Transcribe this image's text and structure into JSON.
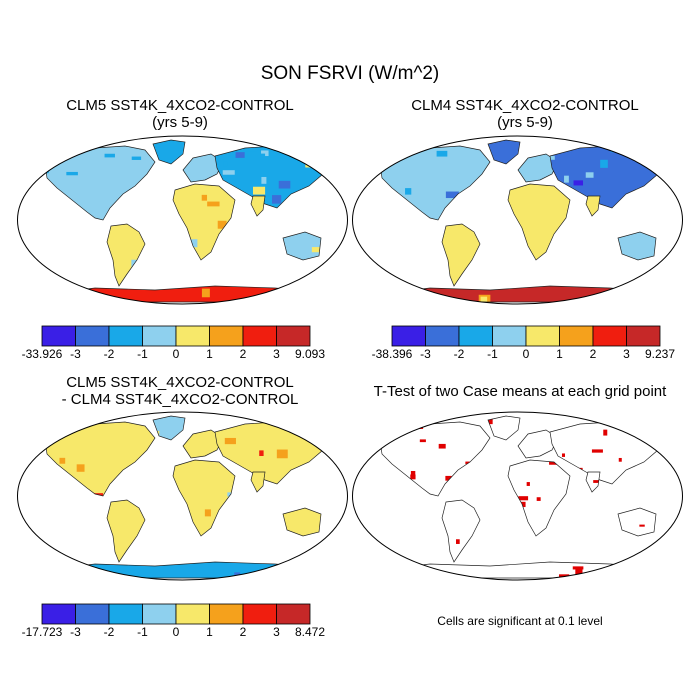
{
  "figure_title": "SON FSRVI (W/m^2)",
  "panels": [
    {
      "title_line1": "CLM5 SST4K_4XCO2-CONTROL",
      "title_line2": "(yrs 5-9)"
    },
    {
      "title_line1": "CLM4 SST4K_4XCO2-CONTROL",
      "title_line2": "(yrs 5-9)"
    },
    {
      "title_line1": "CLM5 SST4K_4XCO2-CONTROL",
      "title_line2": "- CLM4 SST4K_4XCO2-CONTROL"
    },
    {
      "title_line1": "T-Test of two Case means at each grid point",
      "title_line2": ""
    }
  ],
  "colorbars": [
    {
      "labels": [
        "-33.926",
        "-3",
        "-2",
        "-1",
        "0",
        "1",
        "2",
        "3",
        "9.093"
      ]
    },
    {
      "labels": [
        "-38.396",
        "-3",
        "-2",
        "-1",
        "0",
        "1",
        "2",
        "3",
        "9.237"
      ]
    },
    {
      "labels": [
        "-17.723",
        "-3",
        "-2",
        "-1",
        "0",
        "1",
        "2",
        "3",
        "8.472"
      ]
    }
  ],
  "colorbar_colors": [
    "#3a1fe6",
    "#3a6fd9",
    "#19a8e8",
    "#8ed0ee",
    "#f7e86a",
    "#f5a11c",
    "#f01e0f",
    "#c62828"
  ],
  "ttest_color": "#e00000",
  "significance_note": "Cells are significant at 0.1 level",
  "chart_data": [
    {
      "type": "heatmap",
      "title": "CLM5 SST4K_4XCO2-CONTROL (yrs 5-9)",
      "colorbar_levels": [
        -33.926,
        -3,
        -2,
        -1,
        0,
        1,
        2,
        3,
        9.093
      ],
      "projection": "Robinson"
    },
    {
      "type": "heatmap",
      "title": "CLM4 SST4K_4XCO2-CONTROL (yrs 5-9)",
      "colorbar_levels": [
        -38.396,
        -3,
        -2,
        -1,
        0,
        1,
        2,
        3,
        9.237
      ],
      "projection": "Robinson"
    },
    {
      "type": "heatmap",
      "title": "CLM5 SST4K_4XCO2-CONTROL - CLM4 SST4K_4XCO2-CONTROL",
      "colorbar_levels": [
        -17.723,
        -3,
        -2,
        -1,
        0,
        1,
        2,
        3,
        8.472
      ],
      "projection": "Robinson"
    },
    {
      "type": "heatmap",
      "title": "T-Test of two Case means at each grid point",
      "significance_level": 0.1,
      "projection": "Robinson"
    }
  ]
}
